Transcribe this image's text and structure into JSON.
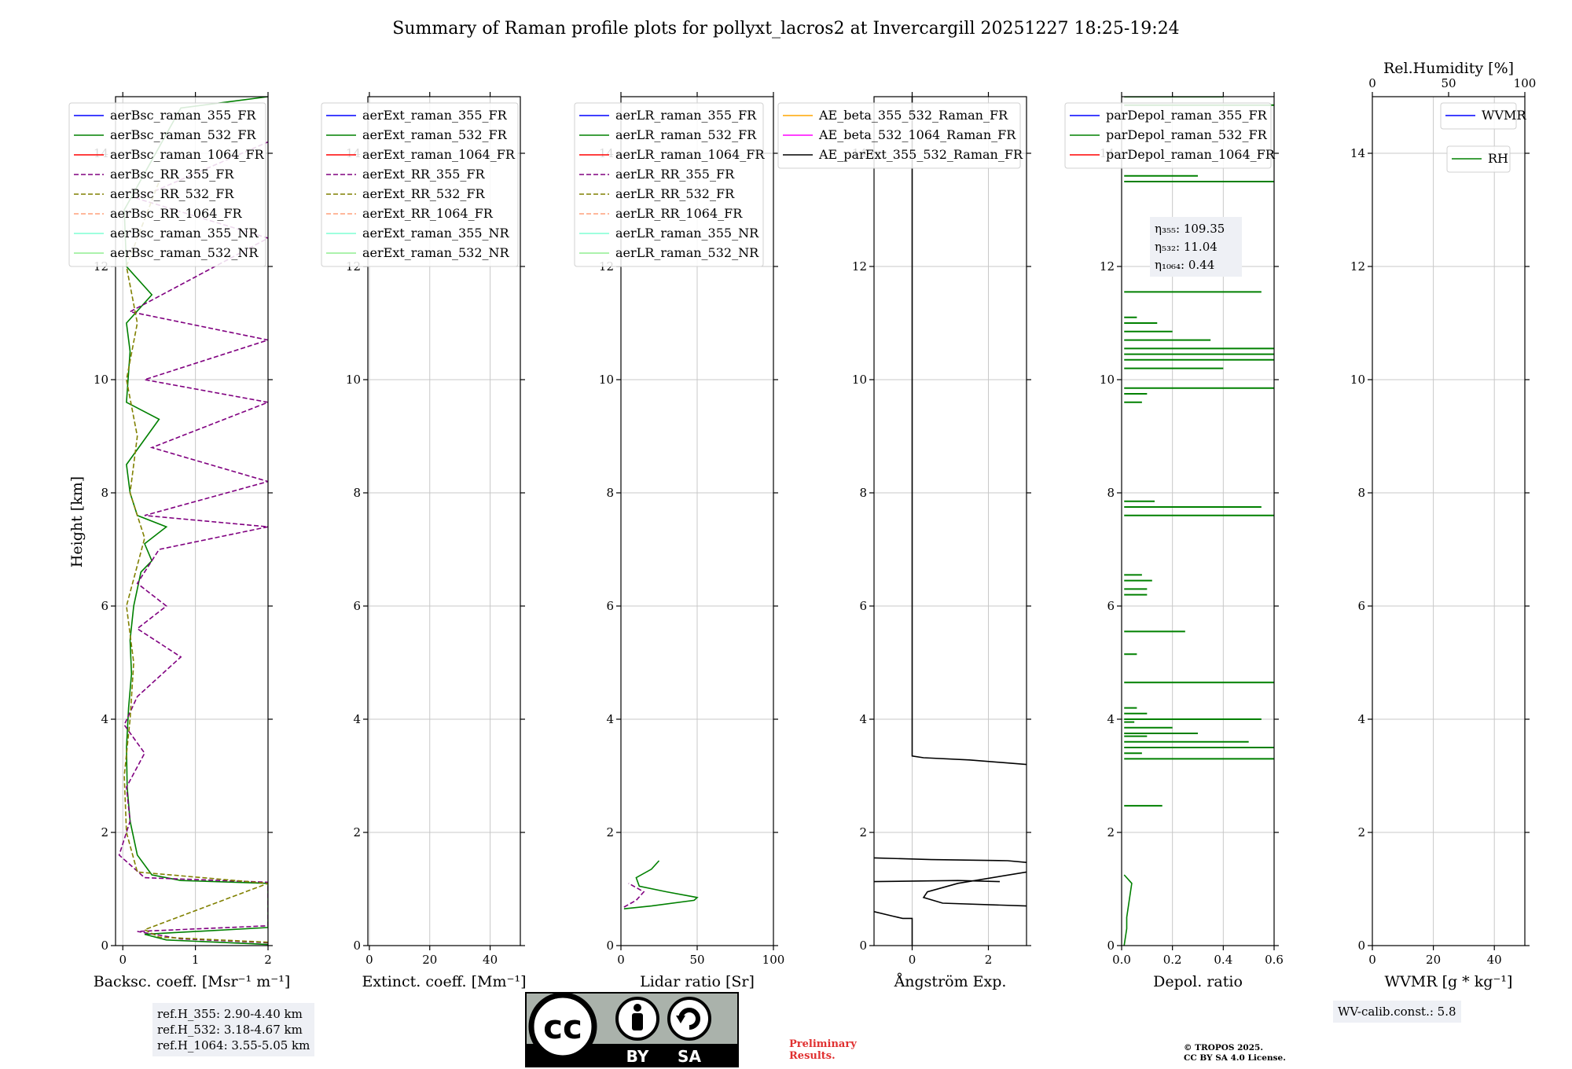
{
  "title": "Summary of Raman profile plots for pollyxt_lacros2 at Invercargill 20251227 18:25-19:24",
  "y_axis_label": "Height [km]",
  "colors": {
    "blue": "#0000ff",
    "green": "#008000",
    "red": "#ff0000",
    "purple": "#800080",
    "olive": "#808000",
    "salmon": "#ffa07a",
    "cyan": "#7fffd4",
    "lightgreen": "#90ee90",
    "orange": "#ffa500",
    "magenta": "#ff00ff",
    "black": "#000000",
    "grid": "#c8c8c8",
    "prelim": "#e03030"
  },
  "chart_data": [
    {
      "type": "line",
      "id": "bsc",
      "xlabel": "Backsc. coeff. [Msr⁻¹ m⁻¹]",
      "ylabel": "Height [km]",
      "xlim": [
        -0.1,
        2
      ],
      "ylim": [
        0,
        15
      ],
      "xticks": [
        0,
        1,
        2
      ],
      "yticks": [
        0,
        2,
        4,
        6,
        8,
        10,
        12,
        14
      ],
      "legend": [
        {
          "name": "aerBsc_raman_355_FR",
          "color": "blue",
          "style": "solid"
        },
        {
          "name": "aerBsc_raman_532_FR",
          "color": "green",
          "style": "solid"
        },
        {
          "name": "aerBsc_raman_1064_FR",
          "color": "red",
          "style": "solid"
        },
        {
          "name": "aerBsc_RR_355_FR",
          "color": "purple",
          "style": "dashed"
        },
        {
          "name": "aerBsc_RR_532_FR",
          "color": "olive",
          "style": "dashed"
        },
        {
          "name": "aerBsc_RR_1064_FR",
          "color": "salmon",
          "style": "dashed"
        },
        {
          "name": "aerBsc_raman_355_NR",
          "color": "cyan",
          "style": "solid"
        },
        {
          "name": "aerBsc_raman_532_NR",
          "color": "lightgreen",
          "style": "solid"
        }
      ],
      "series": [
        {
          "name": "aerBsc_raman_532_FR",
          "color": "green",
          "style": "solid",
          "points": [
            [
              2,
              0.02
            ],
            [
              0.6,
              0.1
            ],
            [
              0.3,
              0.2
            ],
            [
              2,
              0.32
            ],
            [
              2,
              1.1
            ],
            [
              0.8,
              1.15
            ],
            [
              0.4,
              1.25
            ],
            [
              0.2,
              1.6
            ],
            [
              0.1,
              2.2
            ],
            [
              0.06,
              2.8
            ],
            [
              0.05,
              3.5
            ],
            [
              0.08,
              4.2
            ],
            [
              0.12,
              4.8
            ],
            [
              0.1,
              5.4
            ],
            [
              0.15,
              6
            ],
            [
              0.25,
              6.6
            ],
            [
              0.4,
              6.8
            ],
            [
              0.3,
              7.1
            ],
            [
              0.6,
              7.4
            ],
            [
              0.2,
              7.6
            ],
            [
              0.1,
              8
            ],
            [
              0.05,
              8.5
            ],
            [
              0.5,
              9.3
            ],
            [
              0.05,
              9.6
            ],
            [
              0.1,
              10.5
            ],
            [
              0.05,
              11
            ],
            [
              0.4,
              11.5
            ],
            [
              0.05,
              12
            ],
            [
              0.02,
              13
            ],
            [
              0.8,
              14.8
            ],
            [
              2,
              15
            ]
          ]
        },
        {
          "name": "aerBsc_RR_355_FR",
          "color": "purple",
          "style": "dashed",
          "points": [
            [
              2,
              0.05
            ],
            [
              0.8,
              0.12
            ],
            [
              0.2,
              0.25
            ],
            [
              2,
              0.35
            ],
            [
              2,
              1.12
            ],
            [
              0.3,
              1.2
            ],
            [
              -0.05,
              1.6
            ],
            [
              0.1,
              2.2
            ],
            [
              0.05,
              2.8
            ],
            [
              0.3,
              3.4
            ],
            [
              0.02,
              3.9
            ],
            [
              0.2,
              4.4
            ],
            [
              0.8,
              5.1
            ],
            [
              0.2,
              5.6
            ],
            [
              0.6,
              6
            ],
            [
              0.2,
              6.4
            ],
            [
              0.5,
              7
            ],
            [
              2,
              7.4
            ],
            [
              0.3,
              7.6
            ],
            [
              2,
              8.2
            ],
            [
              0.4,
              8.8
            ],
            [
              2,
              9.6
            ],
            [
              0.3,
              10
            ],
            [
              2,
              10.7
            ],
            [
              0.1,
              11.2
            ],
            [
              2,
              12.5
            ],
            [
              0.2,
              13.2
            ],
            [
              2,
              14.2
            ]
          ]
        },
        {
          "name": "aerBsc_RR_532_FR",
          "color": "olive",
          "style": "dashed",
          "points": [
            [
              2,
              0.06
            ],
            [
              0.5,
              0.15
            ],
            [
              0.3,
              0.28
            ],
            [
              2,
              1.1
            ],
            [
              0.2,
              1.3
            ],
            [
              0.05,
              2
            ],
            [
              0.02,
              3
            ],
            [
              0.1,
              4
            ],
            [
              0.15,
              5
            ],
            [
              0.05,
              6
            ],
            [
              0.3,
              7.2
            ],
            [
              0.1,
              8
            ],
            [
              0.2,
              9
            ],
            [
              0.05,
              10
            ],
            [
              0.2,
              11
            ],
            [
              0.05,
              12
            ],
            [
              0.5,
              13.5
            ]
          ]
        }
      ]
    },
    {
      "type": "line",
      "id": "ext",
      "xlabel": "Extinct. coeff. [Mm⁻¹]",
      "xlim": [
        -0.5,
        50
      ],
      "ylim": [
        0,
        15
      ],
      "xticks": [
        0,
        20,
        40
      ],
      "yticks": [
        0,
        2,
        4,
        6,
        8,
        10,
        12,
        14
      ],
      "legend": [
        {
          "name": "aerExt_raman_355_FR",
          "color": "blue",
          "style": "solid"
        },
        {
          "name": "aerExt_raman_532_FR",
          "color": "green",
          "style": "solid"
        },
        {
          "name": "aerExt_raman_1064_FR",
          "color": "red",
          "style": "solid"
        },
        {
          "name": "aerExt_RR_355_FR",
          "color": "purple",
          "style": "dashed"
        },
        {
          "name": "aerExt_RR_532_FR",
          "color": "olive",
          "style": "dashed"
        },
        {
          "name": "aerExt_RR_1064_FR",
          "color": "salmon",
          "style": "dashed"
        },
        {
          "name": "aerExt_raman_355_NR",
          "color": "cyan",
          "style": "solid"
        },
        {
          "name": "aerExt_raman_532_NR",
          "color": "lightgreen",
          "style": "solid"
        }
      ],
      "series": []
    },
    {
      "type": "line",
      "id": "lr",
      "xlabel": "Lidar ratio [Sr]",
      "xlim": [
        0,
        100
      ],
      "ylim": [
        0,
        15
      ],
      "xticks": [
        0,
        50,
        100
      ],
      "yticks": [
        0,
        2,
        4,
        6,
        8,
        10,
        12,
        14
      ],
      "legend": [
        {
          "name": "aerLR_raman_355_FR",
          "color": "blue",
          "style": "solid"
        },
        {
          "name": "aerLR_raman_532_FR",
          "color": "green",
          "style": "solid"
        },
        {
          "name": "aerLR_raman_1064_FR",
          "color": "red",
          "style": "solid"
        },
        {
          "name": "aerLR_RR_355_FR",
          "color": "purple",
          "style": "dashed"
        },
        {
          "name": "aerLR_RR_532_FR",
          "color": "olive",
          "style": "dashed"
        },
        {
          "name": "aerLR_RR_1064_FR",
          "color": "salmon",
          "style": "dashed"
        },
        {
          "name": "aerLR_raman_355_NR",
          "color": "cyan",
          "style": "solid"
        },
        {
          "name": "aerLR_raman_532_NR",
          "color": "lightgreen",
          "style": "solid"
        }
      ],
      "series": [
        {
          "name": "aerLR_raman_532_FR",
          "color": "green",
          "style": "solid",
          "points": [
            [
              2,
              0.65
            ],
            [
              20,
              0.7
            ],
            [
              48,
              0.8
            ],
            [
              50,
              0.85
            ],
            [
              30,
              0.95
            ],
            [
              12,
              1.05
            ],
            [
              10,
              1.2
            ],
            [
              20,
              1.35
            ],
            [
              25,
              1.5
            ]
          ]
        },
        {
          "name": "aerLR_RR_355_FR",
          "color": "purple",
          "style": "dashed",
          "points": [
            [
              2,
              0.68
            ],
            [
              10,
              0.8
            ],
            [
              15,
              0.95
            ],
            [
              5,
              1.1
            ]
          ]
        }
      ]
    },
    {
      "type": "line",
      "id": "ae",
      "xlabel": "Ångström Exp.",
      "xlim": [
        -1,
        3
      ],
      "ylim": [
        0,
        15
      ],
      "xticks": [
        0,
        2
      ],
      "yticks": [
        0,
        2,
        4,
        6,
        8,
        10,
        12,
        14
      ],
      "legend": [
        {
          "name": "AE_beta_355_532_Raman_FR",
          "color": "orange",
          "style": "solid"
        },
        {
          "name": "AE_beta_532_1064_Raman_FR",
          "color": "magenta",
          "style": "solid"
        },
        {
          "name": "AE_parExt_355_532_Raman_FR",
          "color": "black",
          "style": "solid"
        }
      ],
      "series": [
        {
          "name": "AE_parExt_355_532_Raman_FR",
          "color": "black",
          "style": "solid",
          "points": [
            [
              0,
              15
            ],
            [
              0,
              3.35
            ],
            [
              0.3,
              3.32
            ],
            [
              1.5,
              3.28
            ],
            [
              3,
              3.2
            ]
          ]
        },
        {
          "name": "AE_parExt_355_532_Raman_FR_b",
          "color": "black",
          "style": "solid",
          "points": [
            [
              -1,
              1.55
            ],
            [
              0.5,
              1.52
            ],
            [
              2.5,
              1.5
            ],
            [
              3,
              1.47
            ]
          ]
        },
        {
          "name": "AE_parExt_355_532_Raman_FR_c",
          "color": "black",
          "style": "solid",
          "points": [
            [
              -1,
              1.13
            ],
            [
              1.2,
              1.15
            ],
            [
              2.3,
              1.13
            ]
          ]
        },
        {
          "name": "AE_parExt_355_532_Raman_FR_d",
          "color": "black",
          "style": "solid",
          "points": [
            [
              3,
              1.3
            ],
            [
              1.2,
              1.1
            ],
            [
              0.4,
              0.95
            ],
            [
              0.3,
              0.85
            ],
            [
              0.8,
              0.75
            ],
            [
              3,
              0.7
            ]
          ]
        },
        {
          "name": "AE_parExt_355_532_Raman_FR_e",
          "color": "black",
          "style": "solid",
          "points": [
            [
              -1,
              0.6
            ],
            [
              -0.5,
              0.52
            ],
            [
              -0.25,
              0.48
            ],
            [
              0,
              0.48
            ],
            [
              0,
              0
            ]
          ]
        }
      ]
    },
    {
      "type": "line",
      "id": "depol",
      "xlabel": "Depol. ratio",
      "xlim": [
        0,
        0.6
      ],
      "ylim": [
        0,
        15
      ],
      "xticks": [
        0.0,
        0.2,
        0.4,
        0.6
      ],
      "xtick_labels": [
        "0.0",
        "0.2",
        "0.4",
        "0.6"
      ],
      "yticks": [
        0,
        2,
        4,
        6,
        8,
        10,
        12,
        14
      ],
      "legend": [
        {
          "name": "parDepol_raman_355_FR",
          "color": "blue",
          "style": "solid"
        },
        {
          "name": "parDepol_raman_532_FR",
          "color": "green",
          "style": "solid"
        },
        {
          "name": "parDepol_raman_1064_FR",
          "color": "red",
          "style": "solid"
        }
      ],
      "annotation": {
        "lines": [
          "η₃₅₅: 109.35",
          "η₅₃₂: 11.04",
          "η₁₀₆₄: 0.44"
        ]
      },
      "series": [
        {
          "name": "parDepol_raman_532_FR_low",
          "color": "green",
          "style": "solid",
          "points": [
            [
              0.01,
              0
            ],
            [
              0.02,
              0.3
            ],
            [
              0.02,
              0.5
            ],
            [
              0.03,
              0.8
            ],
            [
              0.04,
              1.1
            ],
            [
              0.02,
              1.2
            ],
            [
              0.01,
              1.25
            ]
          ]
        }
      ],
      "spikes": [
        [
          2.47,
          0.16
        ],
        [
          3.3,
          0.6
        ],
        [
          3.4,
          0.08
        ],
        [
          3.5,
          0.6
        ],
        [
          3.6,
          0.5
        ],
        [
          3.7,
          0.1
        ],
        [
          3.75,
          0.3
        ],
        [
          3.85,
          0.2
        ],
        [
          3.95,
          0.05
        ],
        [
          4.0,
          0.55
        ],
        [
          4.1,
          0.1
        ],
        [
          4.2,
          0.06
        ],
        [
          4.65,
          0.6
        ],
        [
          5.15,
          0.06
        ],
        [
          5.55,
          0.25
        ],
        [
          6.2,
          0.1
        ],
        [
          6.3,
          0.1
        ],
        [
          6.45,
          0.12
        ],
        [
          6.55,
          0.08
        ],
        [
          7.6,
          0.6
        ],
        [
          7.75,
          0.55
        ],
        [
          7.85,
          0.13
        ],
        [
          9.6,
          0.08
        ],
        [
          9.75,
          0.1
        ],
        [
          9.85,
          0.6
        ],
        [
          10.2,
          0.4
        ],
        [
          10.35,
          0.6
        ],
        [
          10.45,
          0.6
        ],
        [
          10.55,
          0.6
        ],
        [
          10.7,
          0.35
        ],
        [
          10.85,
          0.2
        ],
        [
          11.0,
          0.14
        ],
        [
          11.1,
          0.06
        ],
        [
          11.55,
          0.55
        ],
        [
          13.5,
          0.6
        ],
        [
          13.6,
          0.3
        ],
        [
          14.85,
          0.6
        ],
        [
          15.0,
          0.4
        ]
      ]
    },
    {
      "type": "line",
      "id": "wv",
      "xlabel": "WVMR [g * kg⁻¹]",
      "top_xlabel": "Rel.Humidity [%]",
      "xlim": [
        0,
        50
      ],
      "ylim": [
        0,
        15
      ],
      "xticks": [
        0,
        20,
        40
      ],
      "top_xlim": [
        0,
        100
      ],
      "top_xticks": [
        0,
        50,
        100
      ],
      "yticks": [
        0,
        2,
        4,
        6,
        8,
        10,
        12,
        14
      ],
      "legend": [
        {
          "name": "WVMR",
          "color": "blue",
          "style": "solid"
        }
      ],
      "legend2": [
        {
          "name": "RH",
          "color": "green",
          "style": "solid"
        }
      ],
      "series": []
    }
  ],
  "info_boxes": {
    "refh": [
      "ref.H_355: 2.90-4.40 km",
      "ref.H_532: 3.18-4.67 km",
      "ref.H_1064: 3.55-5.05 km"
    ],
    "wv": "WV-calib.const.: 5.8"
  },
  "license": {
    "cc": "cc",
    "by": "BY",
    "sa": "SA"
  },
  "preliminary": [
    "Preliminary",
    "Results."
  ],
  "copyright": [
    "© TROPOS 2025.",
    "CC BY SA 4.0 License."
  ]
}
